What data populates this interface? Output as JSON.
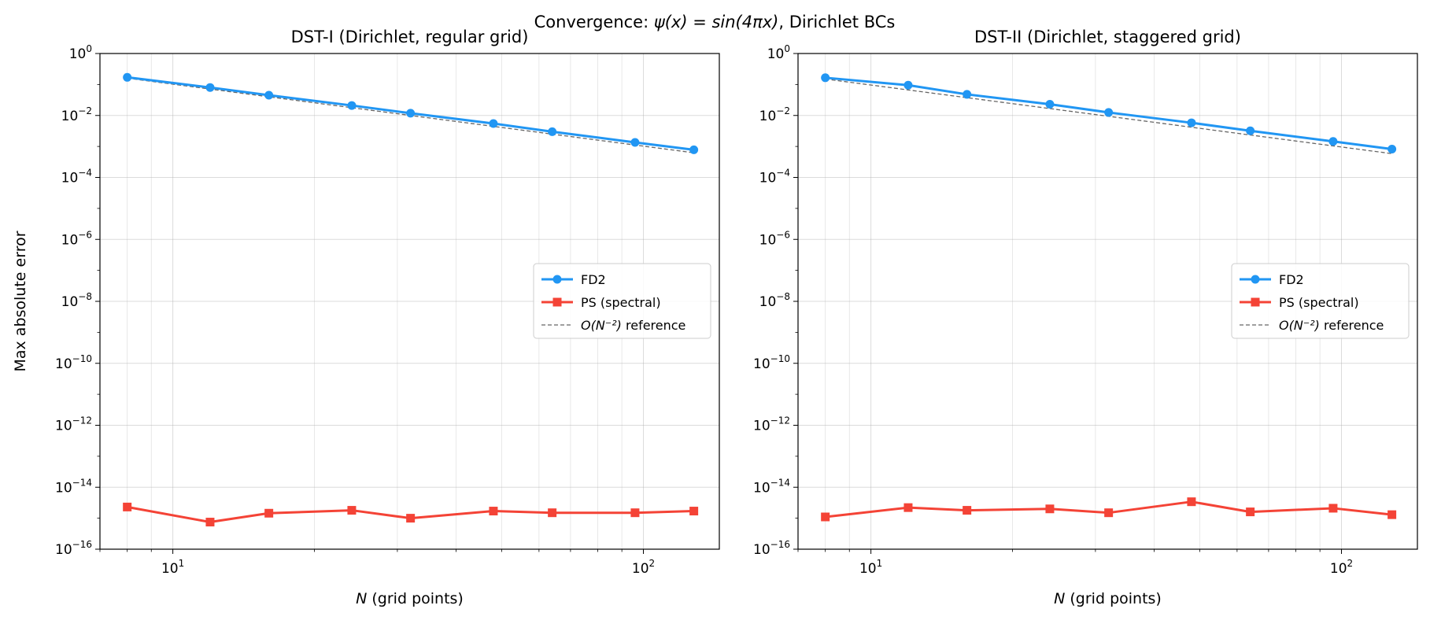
{
  "figure": {
    "suptitle_prefix": "Convergence: ",
    "suptitle_math": "ψ(x) = sin(4πx)",
    "suptitle_suffix": ", Dirichlet BCs"
  },
  "chart_data": [
    {
      "type": "line",
      "title": "DST-I (Dirichlet, regular grid)",
      "xlabel_var": "N",
      "xlabel_rest": " (grid points)",
      "ylabel": "Max absolute error",
      "xscale": "log",
      "yscale": "log",
      "xlim": [
        7,
        145
      ],
      "ylim": [
        1e-16,
        1
      ],
      "x_major_ticks": [
        {
          "base": "10",
          "exp": "1",
          "value": 10
        },
        {
          "base": "10",
          "exp": "2",
          "value": 100
        }
      ],
      "y_major_ticks": [
        {
          "base": "10",
          "exp": "0",
          "value": 1
        },
        {
          "base": "10",
          "exp": "−2",
          "value": 0.01
        },
        {
          "base": "10",
          "exp": "−4",
          "value": 0.0001
        },
        {
          "base": "10",
          "exp": "−6",
          "value": 1e-06
        },
        {
          "base": "10",
          "exp": "−8",
          "value": 1e-08
        },
        {
          "base": "10",
          "exp": "−10",
          "value": 1e-10
        },
        {
          "base": "10",
          "exp": "−12",
          "value": 1e-12
        },
        {
          "base": "10",
          "exp": "−14",
          "value": 1e-14
        },
        {
          "base": "10",
          "exp": "−16",
          "value": 1e-16
        }
      ],
      "grid": true,
      "legend": "center-right",
      "x": [
        8,
        12,
        16,
        24,
        32,
        48,
        64,
        96,
        128
      ],
      "series": [
        {
          "name": "FD2",
          "color": "#2196F3",
          "marker": "circle",
          "style": "solid",
          "values": [
            0.17,
            0.08,
            0.045,
            0.021,
            0.0118,
            0.0055,
            0.003,
            0.00135,
            0.00078
          ]
        },
        {
          "name": "PS (spectral)",
          "color": "#F44336",
          "marker": "square",
          "style": "solid",
          "values": [
            2.3e-15,
            7.5e-16,
            1.45e-15,
            1.8e-15,
            1e-15,
            1.7e-15,
            1.5e-15,
            1.5e-15,
            1.7e-15
          ]
        },
        {
          "name": "reference",
          "math": "O(N⁻²)",
          "color": "#666666",
          "marker": "none",
          "style": "dashed",
          "values": [
            0.16,
            0.0711,
            0.04,
            0.0178,
            0.01,
            0.00444,
            0.0025,
            0.00111,
            0.000625
          ]
        }
      ]
    },
    {
      "type": "line",
      "title": "DST-II (Dirichlet, staggered grid)",
      "xlabel_var": "N",
      "xlabel_rest": " (grid points)",
      "ylabel": "",
      "xscale": "log",
      "yscale": "log",
      "xlim": [
        7,
        145
      ],
      "ylim": [
        1e-16,
        1
      ],
      "x_major_ticks": [
        {
          "base": "10",
          "exp": "1",
          "value": 10
        },
        {
          "base": "10",
          "exp": "2",
          "value": 100
        }
      ],
      "y_major_ticks": [
        {
          "base": "10",
          "exp": "0",
          "value": 1
        },
        {
          "base": "10",
          "exp": "−2",
          "value": 0.01
        },
        {
          "base": "10",
          "exp": "−4",
          "value": 0.0001
        },
        {
          "base": "10",
          "exp": "−6",
          "value": 1e-06
        },
        {
          "base": "10",
          "exp": "−8",
          "value": 1e-08
        },
        {
          "base": "10",
          "exp": "−10",
          "value": 1e-10
        },
        {
          "base": "10",
          "exp": "−12",
          "value": 1e-12
        },
        {
          "base": "10",
          "exp": "−14",
          "value": 1e-14
        },
        {
          "base": "10",
          "exp": "−16",
          "value": 1e-16
        }
      ],
      "grid": true,
      "legend": "center-right",
      "x": [
        8,
        12,
        16,
        24,
        32,
        48,
        64,
        96,
        128
      ],
      "series": [
        {
          "name": "FD2",
          "color": "#2196F3",
          "marker": "circle",
          "style": "solid",
          "values": [
            0.165,
            0.095,
            0.048,
            0.023,
            0.0125,
            0.0058,
            0.0032,
            0.00145,
            0.00082
          ]
        },
        {
          "name": "PS (spectral)",
          "color": "#F44336",
          "marker": "square",
          "style": "solid",
          "values": [
            1.1e-15,
            2.2e-15,
            1.8e-15,
            2e-15,
            1.5e-15,
            3.4e-15,
            1.6e-15,
            2.1e-15,
            1.3e-15
          ]
        },
        {
          "name": "reference",
          "math": "O(N⁻²)",
          "color": "#666666",
          "marker": "none",
          "style": "dashed",
          "values": [
            0.15,
            0.0667,
            0.0375,
            0.0167,
            0.0094,
            0.00417,
            0.00234,
            0.00104,
            0.000586
          ]
        }
      ]
    }
  ]
}
